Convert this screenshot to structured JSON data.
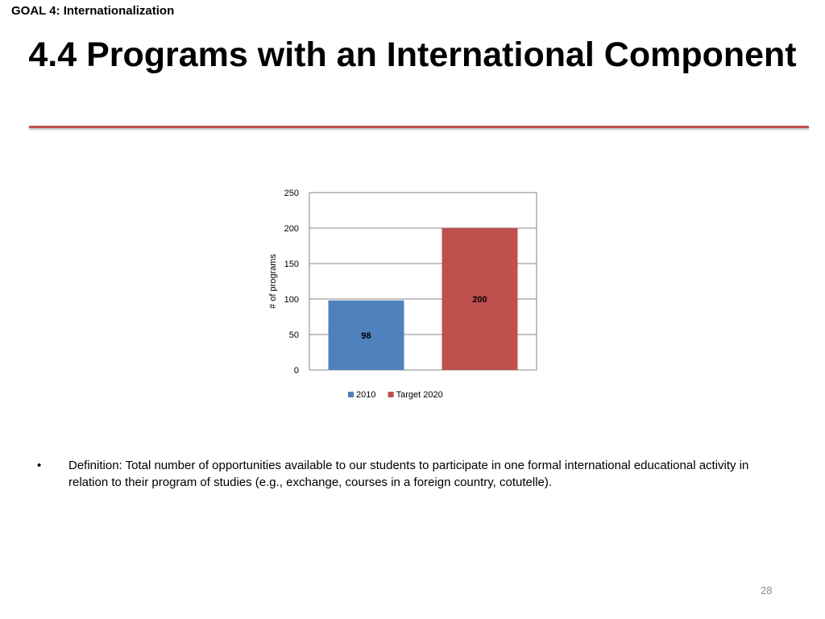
{
  "header": {
    "goal_label": "GOAL 4: Internationalization",
    "title": "4.4 Programs with an International Component"
  },
  "colors": {
    "rule": "#c0504d"
  },
  "chart_data": {
    "type": "bar",
    "categories": [
      "2010",
      "Target 2020"
    ],
    "values": [
      98,
      200
    ],
    "colors": [
      "#4f81bd",
      "#c0504d"
    ],
    "data_labels": [
      "98",
      "200"
    ],
    "title": "",
    "xlabel": "",
    "ylabel": "# of programs",
    "ylim": [
      0,
      250
    ],
    "yticks": [
      0,
      50,
      100,
      150,
      200,
      250
    ],
    "grid": true,
    "legend": {
      "position": "bottom",
      "entries": [
        "2010",
        "Target 2020"
      ]
    }
  },
  "bullets": [
    {
      "marker": "•",
      "text": "Definition: Total number of opportunities available to our students to participate in one formal international educational activity in relation to their program of studies (e.g., exchange, courses in a foreign country, cotutelle)."
    }
  ],
  "footer": {
    "page_number": "28"
  }
}
